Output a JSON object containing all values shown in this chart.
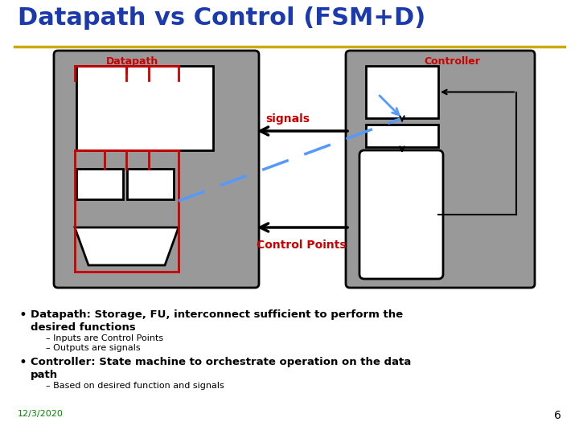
{
  "title": "Datapath vs Control (FSM+D)",
  "title_color": "#1a3aad",
  "title_fontsize": 22,
  "bg_color": "#ffffff",
  "gold_line_color": "#ccaa00",
  "gray_box_color": "#999999",
  "white_box_color": "#ffffff",
  "red_color": "#cc0000",
  "black_color": "#000000",
  "blue_dashed_color": "#5599ff",
  "text_signals": "signals",
  "text_control_points": "Control Points",
  "text_datapath": "Datapath",
  "text_controller": "Controller",
  "bullet1a": "Datapath: Storage, FU, interconnect sufficient to perform the",
  "bullet1b": "desired functions",
  "sub1a": "Inputs are Control Points",
  "sub1b": "Outputs are signals",
  "bullet2a": "Controller: State machine to orchestrate operation on the data",
  "bullet2b": "path",
  "sub2a": "Based on desired function and signals",
  "date_text": "12/3/2020",
  "page_num": "6",
  "green_text_color": "#008800"
}
